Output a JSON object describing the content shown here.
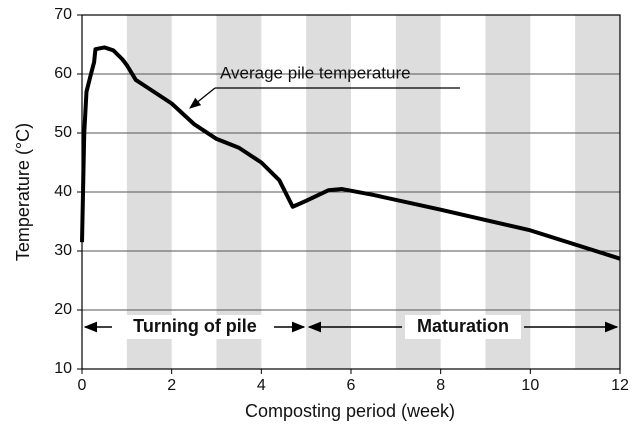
{
  "chart_data": {
    "type": "line",
    "x_label": "Composting period (week)",
    "y_label": "Temperature (°C)",
    "series": [
      {
        "name": "Average pile temperature",
        "color": "#000000",
        "x": [
          0,
          0.05,
          0.1,
          0.2,
          0.27,
          0.3,
          0.5,
          0.7,
          0.9,
          1.0,
          1.2,
          1.5,
          2.0,
          2.5,
          3.0,
          3.5,
          4.0,
          4.4,
          4.7,
          5.0,
          5.5,
          5.8,
          6.5,
          8,
          10,
          12
        ],
        "values": [
          31.5,
          50,
          57,
          60,
          62,
          64.2,
          64.5,
          64,
          62.5,
          61.5,
          59,
          57.5,
          55,
          51.5,
          49,
          47.5,
          45,
          42,
          37.5,
          38.5,
          40.3,
          40.5,
          39.5,
          37,
          33.5,
          28.7
        ]
      }
    ],
    "annotations": [
      "Turning of pile",
      "Maturation"
    ],
    "shaded_bands": [
      [
        1,
        2
      ],
      [
        3,
        4
      ],
      [
        5,
        6
      ],
      [
        7,
        8
      ],
      [
        9,
        10
      ],
      [
        11,
        12
      ]
    ],
    "band_color": "#dddddd",
    "xlim": [
      0,
      12
    ],
    "xticks": [
      0,
      2,
      4,
      6,
      8,
      10,
      12
    ],
    "ylim": [
      10,
      70
    ],
    "yticks": [
      10,
      20,
      30,
      40,
      50,
      60,
      70
    ],
    "grid": true
  }
}
